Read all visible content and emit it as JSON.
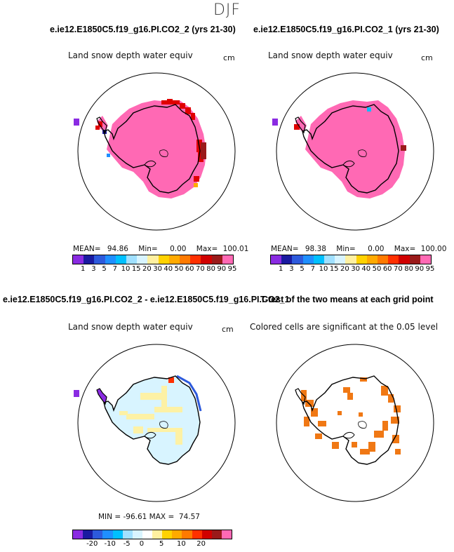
{
  "season": "DJF",
  "panels": {
    "run2": {
      "title": "e.ie12.E1850C5.f19_g16.PI.CO2_2 (yrs 21-30)",
      "subtitle": "Land snow depth water equiv",
      "units": "cm",
      "mean_label": "MEAN=",
      "mean": "94.86",
      "min_label": "Min=",
      "min": "0.00",
      "max_label": "Max=",
      "max": "100.01"
    },
    "run1": {
      "title": "e.ie12.E1850C5.f19_g16.PI.CO2_1 (yrs 21-30)",
      "subtitle": "Land snow depth water equiv",
      "units": "cm",
      "mean_label": "MEAN=",
      "mean": "98.38",
      "min_label": "Min=",
      "min": "0.00",
      "max_label": "Max=",
      "max": "100.00"
    },
    "diff": {
      "title": "e.ie12.E1850C5.f19_g16.PI.CO2_2 - e.ie12.E1850C5.f19_g16.PI.CO2_1",
      "subtitle": "Land snow depth water equiv",
      "units": "cm",
      "stats_text": "MIN = -96.61 MAX =  74.57"
    },
    "ttest": {
      "title": "T-test of the two means at each grid point",
      "subtitle": "Colored cells are significant at the 0.05 level",
      "color": "#f07814"
    }
  },
  "colorbar_main": {
    "colors": [
      "#8a2be2",
      "#1a1aa0",
      "#2d5adc",
      "#1f8fff",
      "#00c0ff",
      "#a0e0ff",
      "#d8f4ff",
      "#fff0a0",
      "#ffd200",
      "#ffaa00",
      "#ff7a00",
      "#ff3000",
      "#d00000",
      "#9a1a1a",
      "#ff69b4"
    ],
    "tick_labels": [
      "1",
      "3",
      "5",
      "7",
      "10",
      "15",
      "20",
      "30",
      "40",
      "50",
      "60",
      "70",
      "80",
      "90",
      "95"
    ]
  },
  "colorbar_diff": {
    "colors": [
      "#8a2be2",
      "#1a1aa0",
      "#2d5adc",
      "#1f8fff",
      "#00c0ff",
      "#a0e0ff",
      "#d8f4ff",
      "#ffffff",
      "#fff0a0",
      "#ffd200",
      "#ffaa00",
      "#ff7a00",
      "#ff3000",
      "#d00000",
      "#9a1a1a",
      "#ff69b4"
    ],
    "tick_labels": [
      "-20",
      "-10",
      "-5",
      "0",
      "5",
      "10",
      "20"
    ]
  },
  "map_colors": {
    "ice_sheet": "#ff69b4",
    "coast_red": "#e00000",
    "dark_red": "#9a1a1a",
    "diff_fill": "#d8f4ff",
    "diff_yellow": "#fff0a0"
  }
}
